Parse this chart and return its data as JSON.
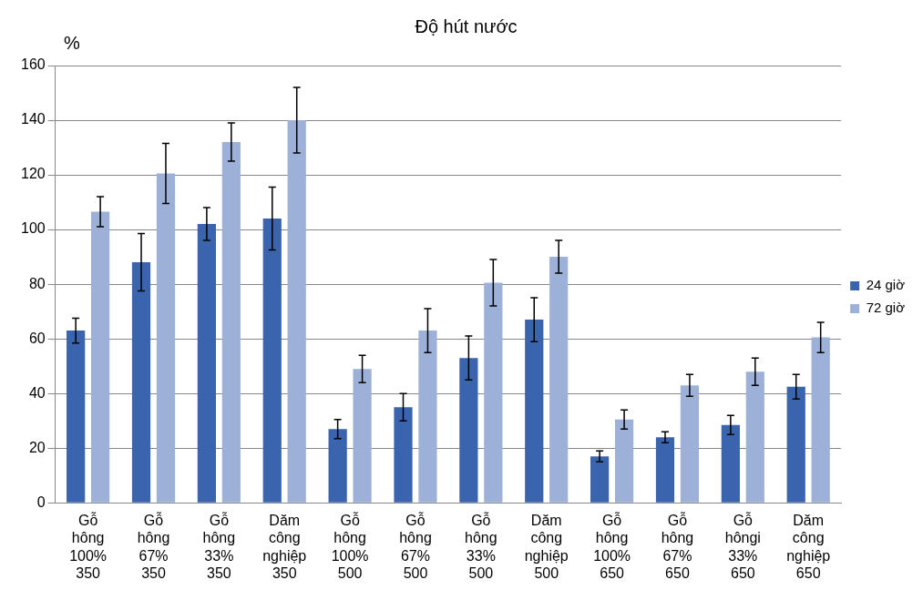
{
  "chart_data": {
    "type": "bar",
    "title": "Độ hút nước",
    "ylabel": "%",
    "categories": [
      "Gỗ hông 100% 350",
      "Gỗ hông 67% 350",
      "Gỗ hông 33% 350",
      "Dăm công nghiệp 350",
      "Gỗ hông 100% 500",
      "Gỗ hông 67% 500",
      "Gỗ hông 33% 500",
      "Dăm công nghiệp 500",
      "Gỗ hông 100% 650",
      "Gỗ hông 67% 650",
      "Gỗ hôngi 33% 650",
      "Dăm công nghiệp 650"
    ],
    "series": [
      {
        "name": "24 giờ",
        "color": "#3a64ad",
        "values": [
          63,
          88,
          102,
          104,
          27,
          35,
          53,
          67,
          17,
          24,
          28.5,
          42.5
        ],
        "errors": [
          4.5,
          10.5,
          6,
          11.5,
          3.5,
          5,
          8,
          8,
          2,
          2,
          3.5,
          4.5
        ]
      },
      {
        "name": "72 giờ",
        "color": "#9db0d8",
        "values": [
          106.5,
          120.5,
          132,
          140,
          49,
          63,
          80.5,
          90,
          30.5,
          43,
          48,
          60.5
        ],
        "errors": [
          5.5,
          11,
          7,
          12,
          5,
          8,
          8.5,
          6,
          3.5,
          4,
          5,
          5.5
        ]
      }
    ],
    "ylim": [
      0,
      160
    ],
    "yticks": [
      0,
      20,
      40,
      60,
      80,
      100,
      120,
      140,
      160
    ],
    "grid": "y",
    "legend": "right"
  }
}
